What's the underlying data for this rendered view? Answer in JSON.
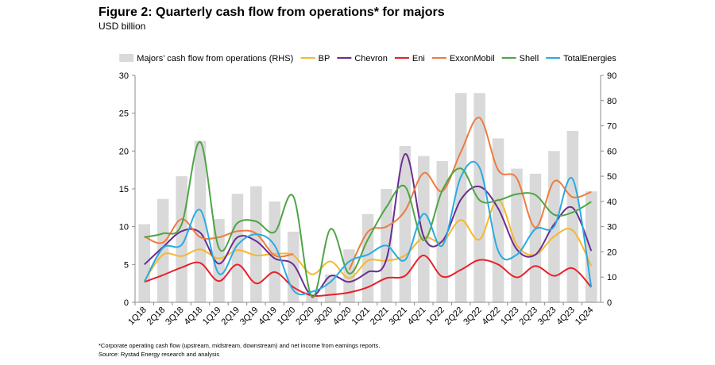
{
  "header": {
    "title": "Figure 2: Quarterly cash flow from operations* for majors",
    "subtitle": "USD billion"
  },
  "footnote": {
    "line1": "*Corporate operating cash flow (upstream, midstream, downstream) and net income from earnings reports.",
    "line2": "Source: Rystad Energy research and analysis"
  },
  "chart_data": {
    "type": "bar+line",
    "title": "Figure 2: Quarterly cash flow from operations* for majors",
    "subtitle": "USD billion",
    "categories": [
      "1Q18",
      "2Q18",
      "3Q18",
      "4Q18",
      "1Q19",
      "2Q19",
      "3Q19",
      "4Q19",
      "1Q20",
      "2Q20",
      "3Q20",
      "4Q20",
      "1Q21",
      "2Q21",
      "3Q21",
      "4Q21",
      "1Q22",
      "2Q22",
      "3Q22",
      "4Q22",
      "1Q23",
      "2Q23",
      "3Q23",
      "4Q23",
      "1Q24"
    ],
    "ylim_left": [
      0,
      30
    ],
    "yticks_left": [
      0,
      5,
      10,
      15,
      20,
      25,
      30
    ],
    "ylim_right": [
      0,
      90
    ],
    "yticks_right": [
      0,
      10,
      20,
      30,
      40,
      50,
      60,
      70,
      80,
      90
    ],
    "grid": false,
    "legend_position": "top",
    "bars": {
      "name": "Majors’ cash flow from operations (RHS)",
      "axis": "right",
      "color": "#d9d9d9",
      "values": [
        31,
        41,
        50,
        64,
        33,
        43,
        46,
        40,
        28,
        3,
        11,
        21,
        35,
        45,
        62,
        58,
        56,
        83,
        83,
        65,
        53,
        51,
        60,
        68,
        44
      ]
    },
    "series": [
      {
        "name": "BP",
        "color": "#f5b82e",
        "values": [
          2.8,
          6.3,
          6.1,
          7.0,
          5.8,
          6.9,
          6.2,
          6.4,
          6.2,
          3.7,
          5.4,
          3.2,
          5.5,
          5.5,
          6.2,
          8.6,
          8.0,
          10.9,
          8.3,
          13.6,
          7.6,
          6.3,
          8.7,
          9.5,
          4.8
        ]
      },
      {
        "name": "Chevron",
        "color": "#6a2d91",
        "values": [
          5.0,
          7.3,
          9.4,
          9.2,
          5.1,
          8.6,
          8.1,
          5.8,
          5.0,
          0.9,
          3.5,
          2.7,
          4.0,
          5.7,
          19.6,
          8.7,
          8.1,
          13.6,
          15.3,
          12.4,
          7.0,
          6.3,
          10.3,
          12.5,
          6.8
        ]
      },
      {
        "name": "Eni",
        "color": "#e8202a",
        "values": [
          2.7,
          3.6,
          4.6,
          5.2,
          2.8,
          5.0,
          2.5,
          4.0,
          2.0,
          0.9,
          1.0,
          1.3,
          2.0,
          3.2,
          3.5,
          6.2,
          3.4,
          4.3,
          5.6,
          5.0,
          3.3,
          4.8,
          3.5,
          4.5,
          2.0
        ]
      },
      {
        "name": "ExxonMobil",
        "color": "#ef7b3e",
        "values": [
          8.7,
          7.9,
          11.0,
          8.6,
          8.6,
          9.4,
          9.1,
          6.2,
          6.4,
          null,
          null,
          4.3,
          9.3,
          10.0,
          12.1,
          17.1,
          14.7,
          19.9,
          24.4,
          17.5,
          16.4,
          9.9,
          16.0,
          13.9,
          14.6
        ]
      },
      {
        "name": "Shell",
        "color": "#4ea544",
        "values": [
          8.6,
          9.1,
          10.3,
          21.2,
          7.2,
          10.5,
          10.7,
          9.3,
          14.0,
          0.7,
          9.7,
          3.8,
          8.3,
          12.6,
          15.3,
          8.2,
          14.8,
          17.7,
          13.5,
          13.5,
          14.3,
          14.2,
          11.6,
          11.9,
          13.3
        ]
      },
      {
        "name": "TotalEnergies",
        "color": "#29abe2",
        "values": [
          2.7,
          7.2,
          7.6,
          12.2,
          3.8,
          7.6,
          9.0,
          7.5,
          1.6,
          1.4,
          2.7,
          5.4,
          6.3,
          7.5,
          5.6,
          11.7,
          7.5,
          16.6,
          17.8,
          6.8,
          6.3,
          9.7,
          10.0,
          16.3,
          2.0
        ]
      }
    ]
  }
}
